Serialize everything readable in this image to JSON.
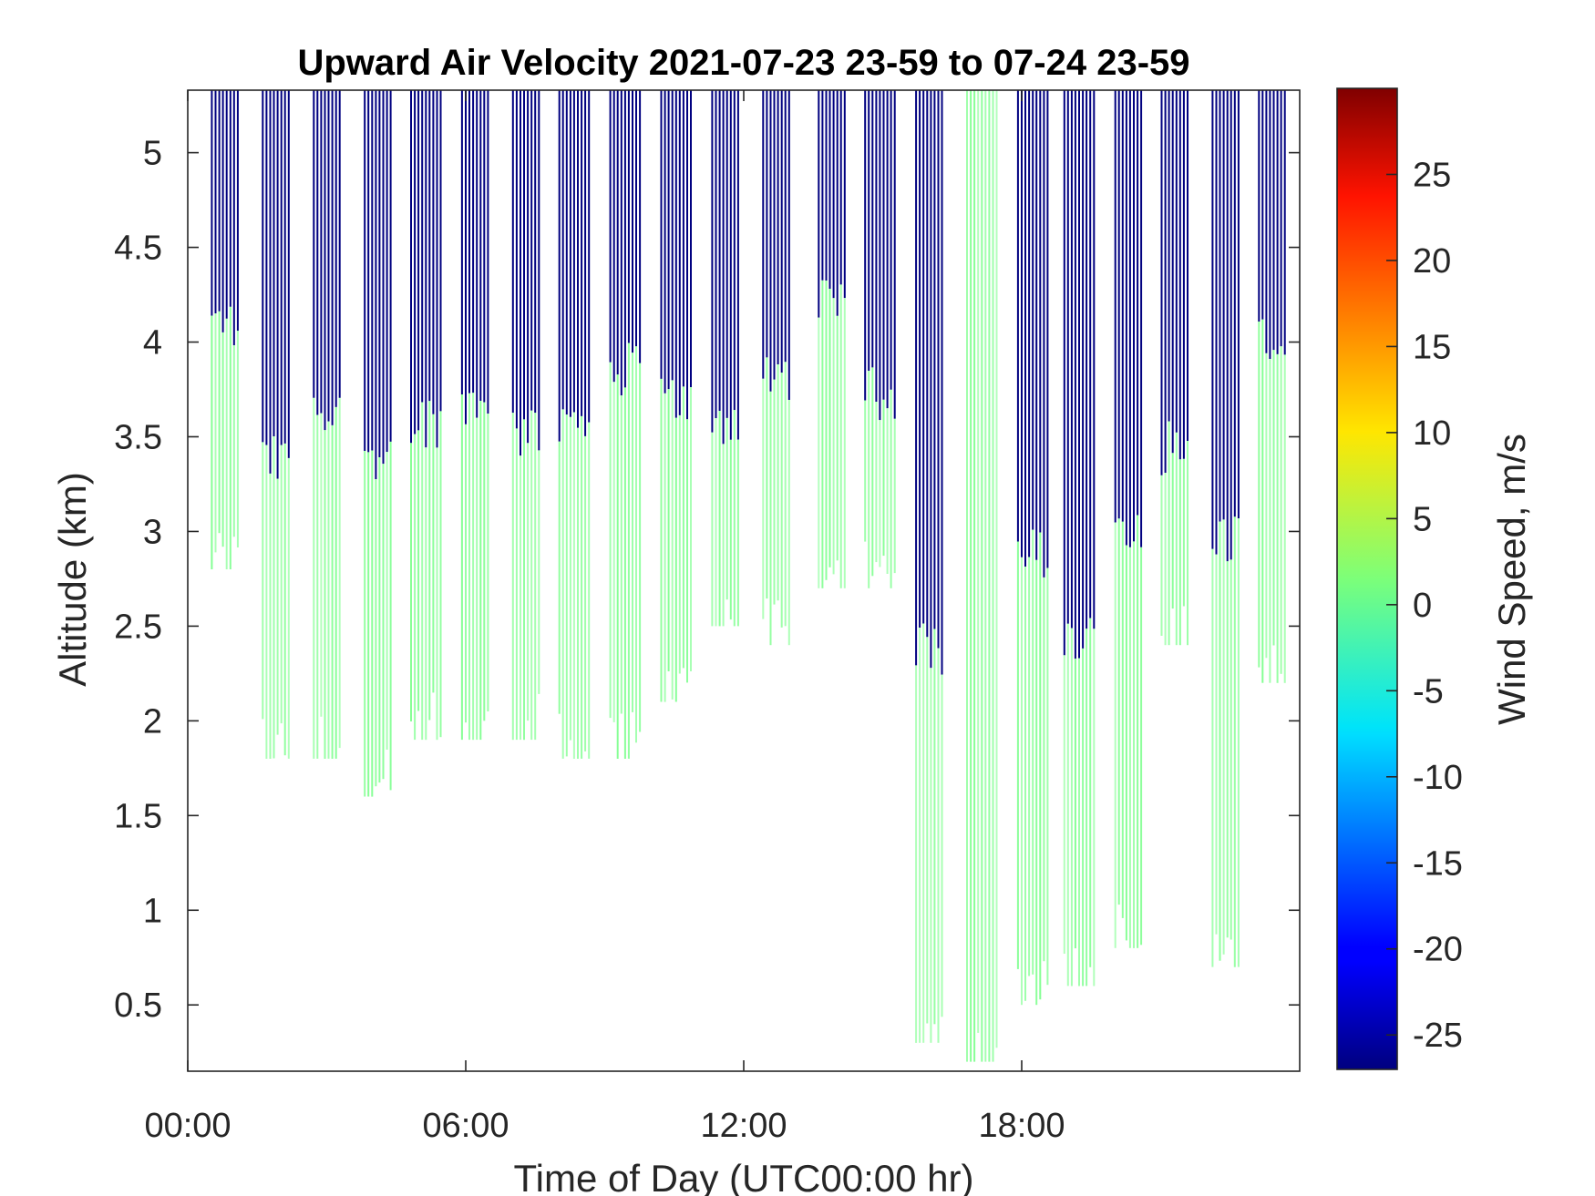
{
  "chart_data": {
    "type": "heatmap",
    "title": "Upward Air Velocity 2021-07-23 23-59 to 07-24 23-59",
    "xlabel": "Time of Day (UTC00:00 hr)",
    "ylabel": "Altitude (km)",
    "colorbar_label": "Wind Speed, m/s",
    "xlim": [
      0,
      24
    ],
    "ylim": [
      0.15,
      5.33
    ],
    "clim": [
      -27,
      30
    ],
    "colormap": "jet",
    "x_ticks": [
      0,
      6,
      12,
      18
    ],
    "x_tick_labels": [
      "00:00",
      "06:00",
      "12:00",
      "18:00"
    ],
    "y_ticks": [
      0.5,
      1,
      1.5,
      2,
      2.5,
      3,
      3.5,
      4,
      4.5,
      5
    ],
    "y_tick_labels": [
      "0.5",
      "1",
      "1.5",
      "2",
      "2.5",
      "3",
      "3.5",
      "4",
      "4.5",
      "5"
    ],
    "colorbar_ticks": [
      -25,
      -20,
      -15,
      -10,
      -5,
      0,
      5,
      10,
      15,
      20,
      25
    ],
    "colorbar_tick_labels": [
      "-25",
      "-20",
      "-15",
      "-10",
      "-5",
      "0",
      "5",
      "10",
      "15",
      "20",
      "25"
    ],
    "grid": false,
    "series": [
      {
        "value_range_m_s": [
          -27,
          1
        ],
        "blocks": [
          {
            "x": [
              0.5,
              1.1
            ],
            "y": [
              2.8,
              5.33
            ],
            "top_value": -27,
            "bottom_value": 1
          },
          {
            "x": [
              1.6,
              2.2
            ],
            "y": [
              1.8,
              5.33
            ],
            "top_value": -27,
            "bottom_value": 1
          },
          {
            "x": [
              2.7,
              3.3
            ],
            "y": [
              1.8,
              5.33
            ],
            "top_value": -27,
            "bottom_value": 1
          },
          {
            "x": [
              3.8,
              4.4
            ],
            "y": [
              1.6,
              5.33
            ],
            "top_value": -27,
            "bottom_value": 1
          },
          {
            "x": [
              4.8,
              5.5
            ],
            "y": [
              1.9,
              5.33
            ],
            "top_value": -27,
            "bottom_value": 1
          },
          {
            "x": [
              5.9,
              6.5
            ],
            "y": [
              1.9,
              5.33
            ],
            "top_value": -27,
            "bottom_value": 1
          },
          {
            "x": [
              7.0,
              7.6
            ],
            "y": [
              1.9,
              5.33
            ],
            "top_value": -27,
            "bottom_value": 1
          },
          {
            "x": [
              8.0,
              8.7
            ],
            "y": [
              1.8,
              5.33
            ],
            "top_value": -27,
            "bottom_value": 1
          },
          {
            "x": [
              9.1,
              9.8
            ],
            "y": [
              1.8,
              5.33
            ],
            "top_value": -27,
            "bottom_value": 1
          },
          {
            "x": [
              10.2,
              10.9
            ],
            "y": [
              2.1,
              5.33
            ],
            "top_value": -27,
            "bottom_value": 1
          },
          {
            "x": [
              11.3,
              11.9
            ],
            "y": [
              2.5,
              5.33
            ],
            "top_value": -27,
            "bottom_value": 1
          },
          {
            "x": [
              12.4,
              13.0
            ],
            "y": [
              2.4,
              5.33
            ],
            "top_value": -27,
            "bottom_value": 1
          },
          {
            "x": [
              13.6,
              14.2
            ],
            "y": [
              2.7,
              5.33
            ],
            "top_value": -27,
            "bottom_value": 1
          },
          {
            "x": [
              14.6,
              15.3
            ],
            "y": [
              2.7,
              5.33
            ],
            "top_value": -27,
            "bottom_value": 1
          },
          {
            "x": [
              15.7,
              16.3
            ],
            "y": [
              0.3,
              5.33
            ],
            "top_value": -27,
            "bottom_value": 1
          },
          {
            "x": [
              16.8,
              17.5
            ],
            "y": [
              0.2,
              5.33
            ],
            "top_value": 1,
            "bottom_value": 1
          },
          {
            "x": [
              17.9,
              18.6
            ],
            "y": [
              0.5,
              5.33
            ],
            "top_value": -27,
            "bottom_value": 1
          },
          {
            "x": [
              18.9,
              19.6
            ],
            "y": [
              0.6,
              5.33
            ],
            "top_value": -27,
            "bottom_value": 1
          },
          {
            "x": [
              20.0,
              20.6
            ],
            "y": [
              0.8,
              5.33
            ],
            "top_value": -27,
            "bottom_value": 1
          },
          {
            "x": [
              21.0,
              21.6
            ],
            "y": [
              2.4,
              5.33
            ],
            "top_value": -27,
            "bottom_value": 1
          },
          {
            "x": [
              22.1,
              22.7
            ],
            "y": [
              0.7,
              5.33
            ],
            "top_value": -27,
            "bottom_value": 1
          },
          {
            "x": [
              23.1,
              23.7
            ],
            "y": [
              2.2,
              5.33
            ],
            "top_value": -27,
            "bottom_value": 1
          }
        ]
      }
    ]
  }
}
